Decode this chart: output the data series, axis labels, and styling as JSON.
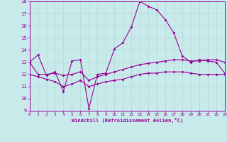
{
  "xlabel": "Windchill (Refroidissement éolien,°C)",
  "xlim": [
    0,
    23
  ],
  "ylim": [
    9,
    18
  ],
  "xticks": [
    0,
    1,
    2,
    3,
    4,
    5,
    6,
    7,
    8,
    9,
    10,
    11,
    12,
    13,
    14,
    15,
    16,
    17,
    18,
    19,
    20,
    21,
    22,
    23
  ],
  "yticks": [
    9,
    10,
    11,
    12,
    13,
    14,
    15,
    16,
    17,
    18
  ],
  "bg_color": "#c8eaea",
  "line_color": "#990099",
  "grid_color": "#b0d8d8",
  "curve1_y": [
    13.0,
    13.6,
    11.9,
    12.2,
    10.6,
    13.1,
    13.2,
    9.2,
    12.0,
    12.1,
    14.1,
    14.6,
    15.9,
    18.0,
    17.6,
    17.3,
    16.5,
    15.4,
    13.5,
    13.0,
    13.2,
    13.1,
    13.0,
    12.1
  ],
  "curve2_y": [
    13.0,
    12.0,
    12.0,
    12.1,
    11.9,
    12.0,
    12.2,
    11.5,
    11.8,
    12.0,
    12.2,
    12.4,
    12.6,
    12.8,
    12.9,
    13.0,
    13.1,
    13.2,
    13.2,
    13.1,
    13.1,
    13.2,
    13.2,
    13.0
  ],
  "curve3_y": [
    12.0,
    11.8,
    11.6,
    11.4,
    11.0,
    11.2,
    11.5,
    11.0,
    11.2,
    11.4,
    11.5,
    11.6,
    11.8,
    12.0,
    12.1,
    12.1,
    12.2,
    12.2,
    12.2,
    12.1,
    12.0,
    12.0,
    12.0,
    12.0
  ]
}
